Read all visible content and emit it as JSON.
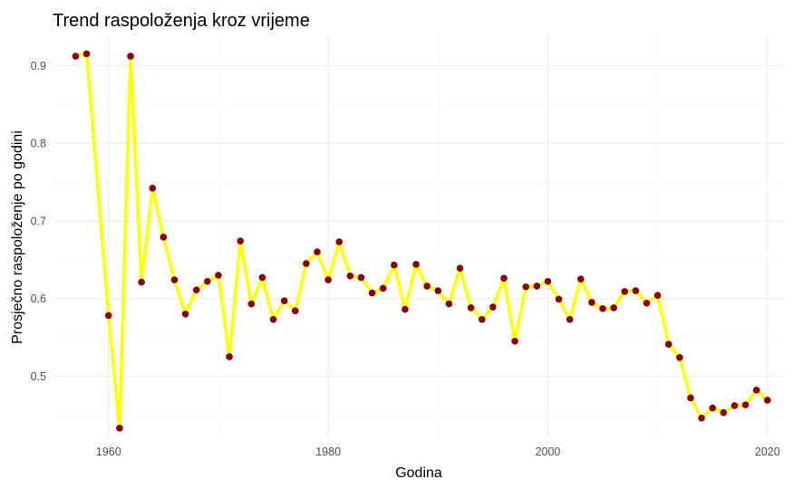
{
  "chart_data": {
    "type": "line",
    "title": "Trend raspoloženja kroz vrijeme",
    "xlabel": "Godina",
    "ylabel": "Prosječno raspoloženje po godini",
    "xlim": [
      1954.9,
      2021.5
    ],
    "ylim": [
      0.42,
      0.94
    ],
    "x_ticks": [
      1960,
      1980,
      2000,
      2020
    ],
    "y_ticks": [
      0.5,
      0.6,
      0.7,
      0.8,
      0.9
    ],
    "x_tick_labels": [
      "1960",
      "1980",
      "2000",
      "2020"
    ],
    "y_tick_labels": [
      "0.5",
      "0.6",
      "0.7",
      "0.8",
      "0.9"
    ],
    "grid": true,
    "line_color": "#ffff00",
    "point_color": "#8b0000",
    "series": [
      {
        "x": [
          1957,
          1958,
          1960,
          1961,
          1962,
          1963,
          1964,
          1965,
          1966,
          1967,
          1968,
          1969,
          1970,
          1971,
          1972,
          1973,
          1974,
          1975,
          1976,
          1977,
          1978,
          1979,
          1980,
          1981,
          1982,
          1983,
          1984,
          1985,
          1986,
          1987,
          1988,
          1989,
          1990,
          1991,
          1992,
          1993,
          1994,
          1995,
          1996,
          1997,
          1998,
          1999,
          2000,
          2001,
          2002,
          2003,
          2004,
          2005,
          2006,
          2007,
          2008,
          2009,
          2010,
          2011,
          2012,
          2013,
          2014,
          2015,
          2016,
          2017,
          2018,
          2019,
          2020
        ],
        "y": [
          0.912,
          0.915,
          0.578,
          0.433,
          0.912,
          0.621,
          0.742,
          0.679,
          0.624,
          0.58,
          0.611,
          0.622,
          0.63,
          0.525,
          0.674,
          0.593,
          0.627,
          0.573,
          0.597,
          0.584,
          0.645,
          0.66,
          0.624,
          0.673,
          0.629,
          0.627,
          0.607,
          0.613,
          0.643,
          0.586,
          0.644,
          0.616,
          0.61,
          0.593,
          0.639,
          0.588,
          0.573,
          0.589,
          0.626,
          0.545,
          0.615,
          0.616,
          0.622,
          0.599,
          0.573,
          0.625,
          0.595,
          0.587,
          0.588,
          0.609,
          0.61,
          0.594,
          0.604,
          0.541,
          0.524,
          0.472,
          0.446,
          0.459,
          0.453,
          0.462,
          0.463,
          0.482,
          0.469
        ]
      }
    ]
  }
}
